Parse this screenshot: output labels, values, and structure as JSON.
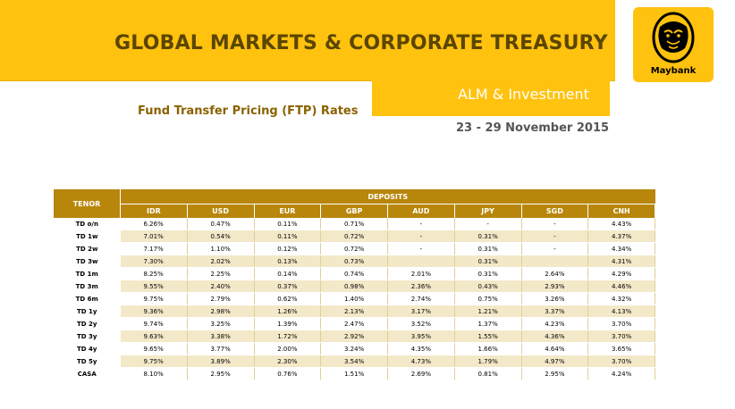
{
  "header": {
    "title": "GLOBAL MARKETS & CORPORATE TREASURY",
    "division": "ALM & Investment",
    "subtitle": "Fund Transfer Pricing (FTP) Rates",
    "date": "23 - 29 November 2015"
  },
  "logo": {
    "icon": "tiger-head-icon",
    "text": "Maybank",
    "color": "#ffc20e"
  },
  "colors": {
    "accent": "#ffc20e",
    "header_fill": "#b8860b",
    "stripe": "#f3e9c9"
  },
  "table": {
    "tenor_label": "TENOR",
    "group_label": "DEPOSITS",
    "columns": [
      "IDR",
      "USD",
      "EUR",
      "GBP",
      "AUD",
      "JPY",
      "SGD",
      "CNH"
    ],
    "rows": [
      {
        "tenor": "TD o/n",
        "values": [
          "6.26%",
          "0.47%",
          "0.11%",
          "0.71%",
          "-",
          "-",
          "-",
          "4.43%"
        ]
      },
      {
        "tenor": "TD 1w",
        "values": [
          "7.01%",
          "0.54%",
          "0.11%",
          "0.72%",
          "-",
          "0.31%",
          "-",
          "4.37%"
        ]
      },
      {
        "tenor": "TD 2w",
        "values": [
          "7.17%",
          "1.10%",
          "0.12%",
          "0.72%",
          "-",
          "0.31%",
          "-",
          "4.34%"
        ]
      },
      {
        "tenor": "TD 3w",
        "values": [
          "7.30%",
          "2.02%",
          "0.13%",
          "0.73%",
          "",
          "0.31%",
          "",
          "4.31%"
        ]
      },
      {
        "tenor": "TD 1m",
        "values": [
          "8.25%",
          "2.25%",
          "0.14%",
          "0.74%",
          "2.01%",
          "0.31%",
          "2.64%",
          "4.29%"
        ]
      },
      {
        "tenor": "TD 3m",
        "values": [
          "9.55%",
          "2.40%",
          "0.37%",
          "0.98%",
          "2.36%",
          "0.43%",
          "2.93%",
          "4.46%"
        ]
      },
      {
        "tenor": "TD 6m",
        "values": [
          "9.75%",
          "2.79%",
          "0.62%",
          "1.40%",
          "2.74%",
          "0.75%",
          "3.26%",
          "4.32%"
        ]
      },
      {
        "tenor": "TD 1y",
        "values": [
          "9.36%",
          "2.98%",
          "1.26%",
          "2.13%",
          "3.17%",
          "1.21%",
          "3.37%",
          "4.13%"
        ]
      },
      {
        "tenor": "TD 2y",
        "values": [
          "9.74%",
          "3.25%",
          "1.39%",
          "2.47%",
          "3.52%",
          "1.37%",
          "4.23%",
          "3.70%"
        ]
      },
      {
        "tenor": "TD 3y",
        "values": [
          "9.63%",
          "3.38%",
          "1.72%",
          "2.92%",
          "3.95%",
          "1.55%",
          "4.36%",
          "3.70%"
        ]
      },
      {
        "tenor": "TD 4y",
        "values": [
          "9.65%",
          "3.77%",
          "2.00%",
          "3.24%",
          "4.35%",
          "1.66%",
          "4.64%",
          "3.65%"
        ]
      },
      {
        "tenor": "TD 5y",
        "values": [
          "9.75%",
          "3.89%",
          "2.30%",
          "3.54%",
          "4.73%",
          "1.79%",
          "4.97%",
          "3.70%"
        ]
      },
      {
        "tenor": "CASA",
        "values": [
          "8.10%",
          "2.95%",
          "0.76%",
          "1.51%",
          "2.69%",
          "0.81%",
          "2.95%",
          "4.24%"
        ]
      }
    ]
  }
}
